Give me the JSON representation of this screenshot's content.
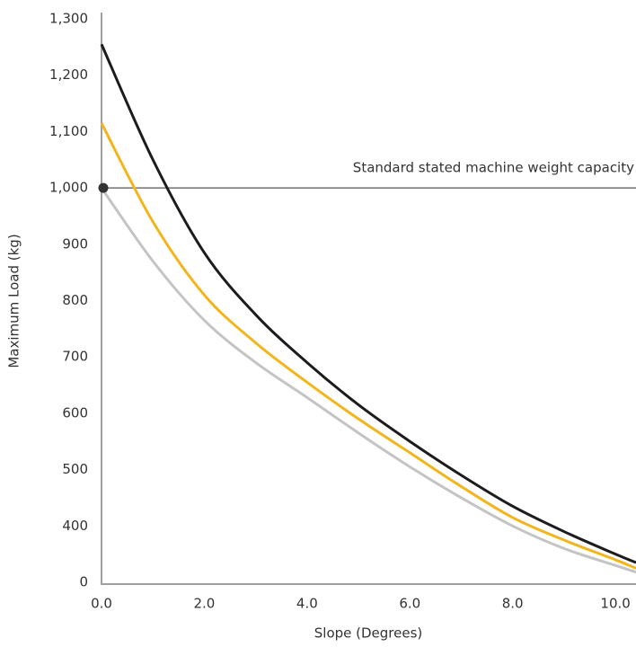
{
  "chart_data": {
    "type": "line",
    "x_label": "Slope (Degrees)",
    "y_label": "Maximum Load (kg)",
    "x": [
      0,
      1,
      2,
      3,
      4,
      5,
      6,
      7,
      8,
      9,
      10,
      10.4
    ],
    "series": [
      {
        "color": "#1c1c1c",
        "values": [
          1255,
          1050,
          885,
          775,
          690,
          615,
          550,
          490,
          435,
          390,
          350,
          335
        ]
      },
      {
        "color": "#f3b51c",
        "values": [
          1115,
          940,
          810,
          725,
          655,
          590,
          530,
          470,
          415,
          375,
          340,
          325
        ]
      },
      {
        "color": "#c4c4c4",
        "values": [
          1000,
          870,
          765,
          690,
          628,
          565,
          505,
          450,
          400,
          360,
          330,
          318
        ]
      }
    ],
    "xlim": [
      0,
      10.4
    ],
    "xticks": [
      {
        "value": 0,
        "label": "0.0"
      },
      {
        "value": 2,
        "label": "2.0"
      },
      {
        "value": 4,
        "label": "4.0"
      },
      {
        "value": 6,
        "label": "6.0"
      },
      {
        "value": 8,
        "label": "8.0"
      },
      {
        "value": 10,
        "label": "10.0"
      }
    ],
    "ylim": [
      300,
      1300
    ],
    "yticks": [
      {
        "value": 300,
        "label": "0"
      },
      400,
      500,
      600,
      700,
      800,
      900,
      {
        "value": 1000,
        "label": "1,000"
      },
      {
        "value": 1100,
        "label": "1,100"
      },
      {
        "value": 1200,
        "label": "1,200"
      },
      {
        "value": 1300,
        "label": "1,300"
      }
    ],
    "reference_line": {
      "value": 1000,
      "label": "Standard stated machine weight capacity",
      "color": "#555555"
    },
    "grid": false
  }
}
